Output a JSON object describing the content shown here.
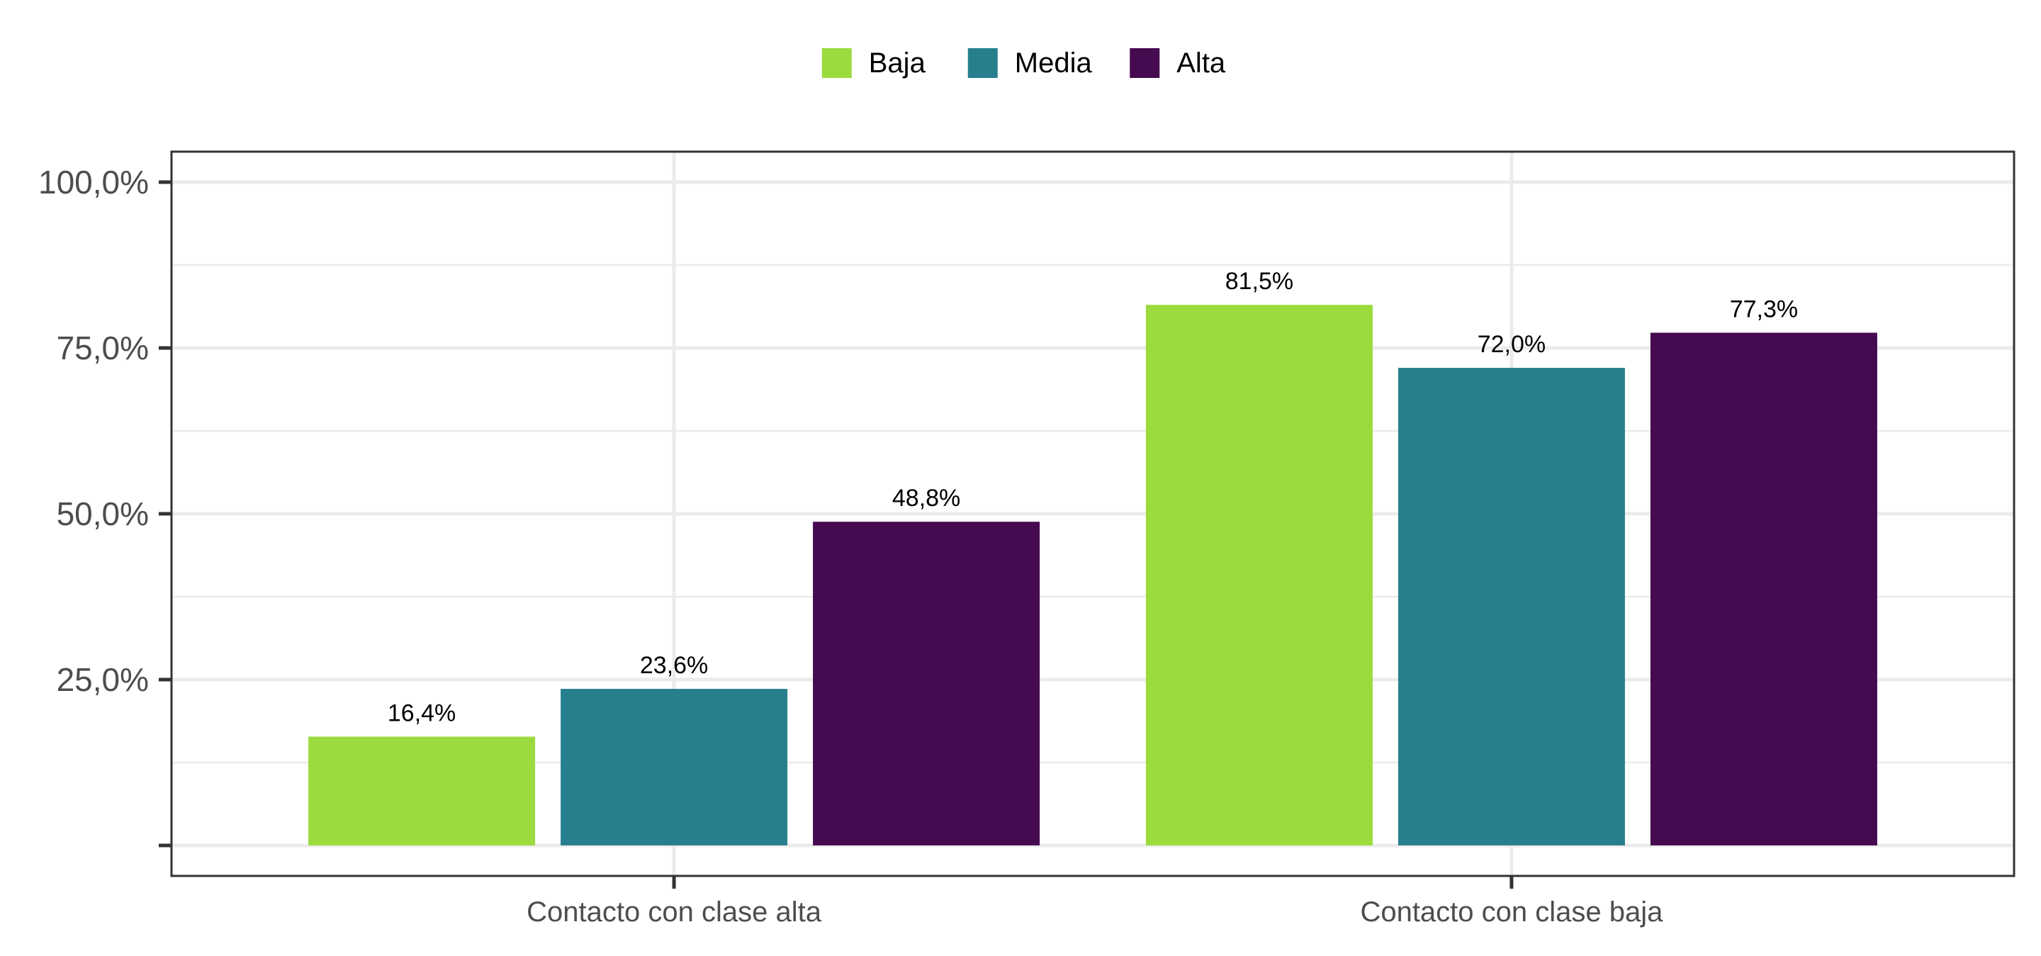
{
  "chart_data": {
    "type": "bar",
    "categories": [
      "Contacto con clase alta",
      "Contacto con clase baja"
    ],
    "series": [
      {
        "name": "Baja",
        "values": [
          16.4,
          81.5
        ],
        "labels": [
          "16,4%",
          "81,5%"
        ]
      },
      {
        "name": "Media",
        "values": [
          23.6,
          72.0
        ],
        "labels": [
          "23,6%",
          "72,0%"
        ]
      },
      {
        "name": "Alta",
        "values": [
          48.8,
          77.3
        ],
        "labels": [
          "48,8%",
          "77,3%"
        ]
      }
    ],
    "yticks": [
      0,
      25,
      50,
      75,
      100
    ],
    "ytick_labels": [
      "",
      "25,0%",
      "50,0%",
      "75,0%",
      "100,0%"
    ],
    "ylim": [
      -4.6,
      104.6
    ],
    "grid": true,
    "legend_position": "top"
  },
  "colors": {
    "Baja": "#9bdb3e",
    "Media": "#277f8e",
    "Alta": "#450a4f",
    "panel_border": "#333333",
    "grid": "#ebebeb"
  }
}
